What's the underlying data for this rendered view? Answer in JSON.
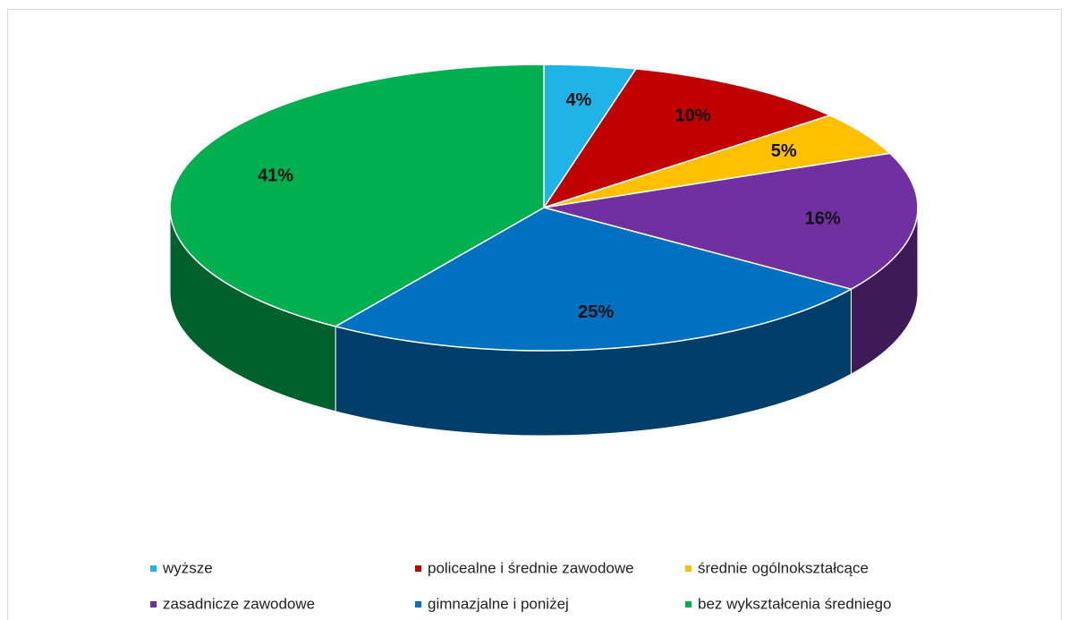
{
  "chart_data": {
    "type": "pie3d",
    "categories": [
      "wyższe",
      "policealne i średnie zawodowe",
      "średnie ogólnokształcące",
      "zasadnicze zawodowe",
      "gimnazjalne i poniżej",
      "bez wykształcenia średniego"
    ],
    "values": [
      4,
      10,
      5,
      16,
      25,
      41
    ],
    "value_labels": [
      "4%",
      "10%",
      "5%",
      "16%",
      "25%",
      "41%"
    ],
    "colors": [
      "#1fb3e8",
      "#c00000",
      "#ffc000",
      "#7030a0",
      "#0070c0",
      "#00b050"
    ],
    "legend": "bottom"
  }
}
